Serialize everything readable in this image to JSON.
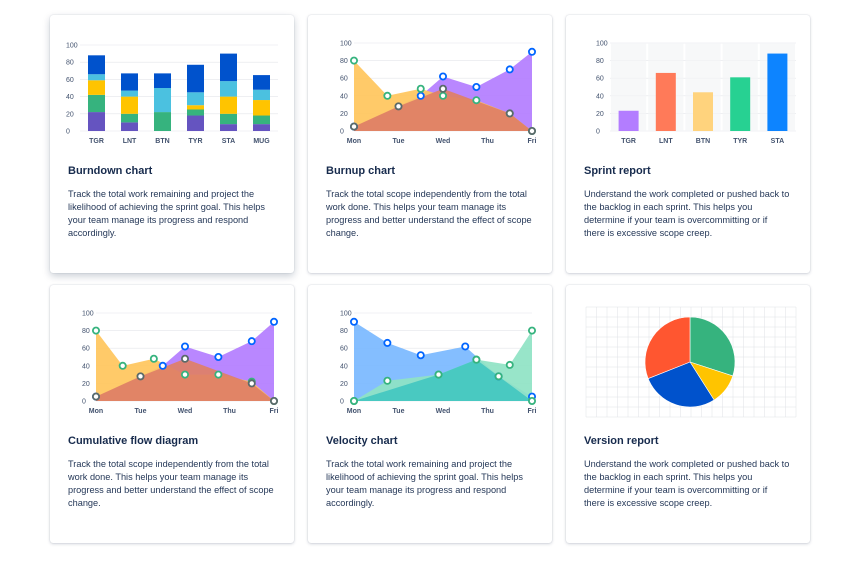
{
  "cards": [
    {
      "title": "Burndown chart",
      "description": "Track the total work remaining and project the likelihood of achieving the sprint goal. This helps your team manage its progress and respond accordingly.",
      "chart_data": {
        "type": "bar",
        "stacked": true,
        "categories": [
          "TGR",
          "LNT",
          "BTN",
          "TYR",
          "STA",
          "MUG"
        ],
        "ylim": [
          0,
          100
        ],
        "yticks": [
          0,
          20,
          40,
          60,
          80,
          100
        ],
        "grid": true,
        "series": [
          {
            "color": "#6554c0",
            "values": [
              22,
              10,
              0,
              18,
              8,
              8
            ]
          },
          {
            "color": "#36b37e",
            "values": [
              20,
              10,
              22,
              7,
              12,
              10
            ]
          },
          {
            "color": "#ffc400",
            "values": [
              17,
              20,
              0,
              5,
              20,
              18
            ]
          },
          {
            "color": "#4bc1e0",
            "values": [
              7,
              7,
              28,
              15,
              18,
              12
            ]
          },
          {
            "color": "#0052cc",
            "values": [
              22,
              20,
              17,
              32,
              32,
              17
            ]
          }
        ]
      }
    },
    {
      "title": "Burnup chart",
      "description": "Track the total scope independently from the total work done. This helps your team manage its progress and better understand the effect of scope change.",
      "chart_data": {
        "type": "area",
        "categories": [
          "Mon",
          "Tue",
          "Wed",
          "Thu",
          "Fri"
        ],
        "ylim": [
          0,
          100
        ],
        "yticks": [
          0,
          20,
          40,
          60,
          80,
          100
        ],
        "grid": true,
        "series": [
          {
            "color": "#b37dff",
            "marker": "#0065ff",
            "x": [
              0,
              1.5,
              2,
              2.75,
              3.5,
              4
            ],
            "y": [
              5,
              40,
              62,
              50,
              70,
              90
            ]
          },
          {
            "color": "#ffc65c",
            "marker": "#36b37e",
            "x": [
              0,
              0.75,
              1.5,
              2,
              2.75,
              3.5,
              4
            ],
            "y": [
              80,
              40,
              48,
              40,
              35,
              20,
              0
            ]
          },
          {
            "color": "#de7f66",
            "marker": "#5a6a6a",
            "x": [
              0,
              1,
              2,
              3.5,
              4
            ],
            "y": [
              5,
              28,
              48,
              20,
              0
            ]
          }
        ]
      }
    },
    {
      "title": "Sprint report",
      "description": "Understand the work completed or pushed back to the backlog in each sprint. This helps you determine if your team is overcommitting or if there is excessive scope creep.",
      "chart_data": {
        "type": "bar",
        "categories": [
          "TGR",
          "LNT",
          "BTN",
          "TYR",
          "STA"
        ],
        "values": [
          23,
          66,
          44,
          61,
          88
        ],
        "colors": [
          "#b37dff",
          "#ff7a59",
          "#ffd37d",
          "#27d192",
          "#0d84ff"
        ],
        "ylim": [
          0,
          100
        ],
        "yticks": [
          0,
          20,
          40,
          60,
          80,
          100
        ],
        "grid": true
      }
    },
    {
      "title": "Cumulative flow diagram",
      "description": "Track the total scope independently from the total work done. This helps your team manage its progress and better understand the effect of scope change.",
      "chart_data": {
        "type": "area",
        "categories": [
          "Mon",
          "Tue",
          "Wed",
          "Thu",
          "Fri"
        ],
        "ylim": [
          0,
          100
        ],
        "yticks": [
          0,
          20,
          40,
          60,
          80,
          100
        ],
        "grid": true,
        "series": [
          {
            "color": "#b37dff",
            "marker": "#0065ff",
            "x": [
              0,
              1.5,
              2,
              2.75,
              3.5,
              4
            ],
            "y": [
              5,
              40,
              62,
              50,
              68,
              90
            ]
          },
          {
            "color": "#ffc65c",
            "marker": "#36b37e",
            "x": [
              0,
              0.6,
              1.3,
              2,
              2.75,
              3.5,
              4
            ],
            "y": [
              80,
              40,
              48,
              30,
              30,
              22,
              0
            ]
          },
          {
            "color": "#de7f66",
            "marker": "#5a6a6a",
            "x": [
              0,
              1,
              2,
              3.5,
              4
            ],
            "y": [
              5,
              28,
              48,
              20,
              0
            ]
          }
        ]
      }
    },
    {
      "title": "Velocity chart",
      "description": "Track the total work remaining and project the likelihood of achieving the sprint goal. This helps your team manage its progress and respond accordingly.",
      "chart_data": {
        "type": "area",
        "categories": [
          "Mon",
          "Tue",
          "Wed",
          "Thu",
          "Fri"
        ],
        "ylim": [
          0,
          100
        ],
        "yticks": [
          0,
          20,
          40,
          60,
          80,
          100
        ],
        "grid": true,
        "series": [
          {
            "color": "#79b8ff",
            "marker": "#0065ff",
            "x": [
              0,
              0.75,
              1.5,
              2.5,
              3.25,
              4
            ],
            "y": [
              90,
              66,
              52,
              62,
              28,
              5
            ]
          },
          {
            "color": "#8fe3c4",
            "marker": "#36b37e",
            "x": [
              0,
              0.75,
              1.9,
              2.75,
              3.5,
              4
            ],
            "y": [
              0,
              23,
              30,
              47,
              41,
              80
            ]
          },
          {
            "color": "#43c7c0",
            "marker": "#36b37e",
            "x": [
              0,
              1.9,
              2.75,
              3.25,
              4
            ],
            "y": [
              0,
              30,
              47,
              28,
              0
            ]
          }
        ]
      }
    },
    {
      "title": "Version report",
      "description": "Understand the work completed or pushed back to the backlog in each sprint. This helps you determine if your team is overcommitting or if there is excessive scope creep.",
      "chart_data": {
        "type": "pie",
        "grid": true,
        "slices": [
          {
            "value": 30,
            "color": "#36b37e"
          },
          {
            "value": 11,
            "color": "#ffc400"
          },
          {
            "value": 28,
            "color": "#0052cc"
          },
          {
            "value": 31,
            "color": "#ff5630"
          }
        ]
      }
    }
  ]
}
